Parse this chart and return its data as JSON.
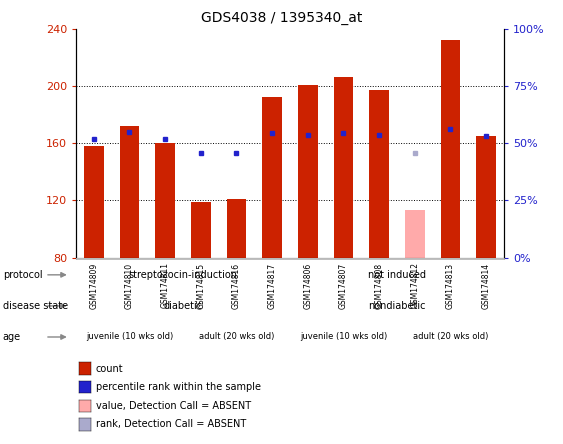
{
  "title": "GDS4038 / 1395340_at",
  "samples": [
    "GSM174809",
    "GSM174810",
    "GSM174811",
    "GSM174815",
    "GSM174816",
    "GSM174817",
    "GSM174806",
    "GSM174807",
    "GSM174808",
    "GSM174812",
    "GSM174813",
    "GSM174814"
  ],
  "bar_values": [
    158,
    172,
    160,
    119,
    121,
    192,
    201,
    206,
    197,
    null,
    232,
    165
  ],
  "bar_color": "#cc2200",
  "absent_bar_value": 113,
  "absent_bar_color": "#ffaaaa",
  "absent_bar_index": 9,
  "percentile_values": [
    163,
    168,
    163,
    153,
    153,
    167,
    166,
    167,
    166,
    null,
    170,
    165
  ],
  "absent_percentile_value": 153,
  "absent_percentile_index": 9,
  "percentile_color": "#2222cc",
  "absent_percentile_color": "#aaaacc",
  "ylim_left": [
    80,
    240
  ],
  "yticks_left": [
    80,
    120,
    160,
    200,
    240
  ],
  "ylim_right": [
    0,
    100
  ],
  "yticks_right": [
    0,
    25,
    50,
    75,
    100
  ],
  "ytick_labels_right": [
    "0%",
    "25%",
    "50%",
    "75%",
    "100%"
  ],
  "protocol_groups": [
    {
      "label": "streptozocin-induction",
      "start": 0,
      "end": 5,
      "color": "#aaddaa"
    },
    {
      "label": "not induced",
      "start": 6,
      "end": 11,
      "color": "#44cc44"
    }
  ],
  "disease_groups": [
    {
      "label": "diabetic",
      "start": 0,
      "end": 5,
      "color": "#bbaaee"
    },
    {
      "label": "nondiabetic",
      "start": 6,
      "end": 11,
      "color": "#6655cc"
    }
  ],
  "age_groups": [
    {
      "label": "juvenile (10 wks old)",
      "start": 0,
      "end": 2,
      "color": "#ffbbaa"
    },
    {
      "label": "adult (20 wks old)",
      "start": 3,
      "end": 5,
      "color": "#cc6655"
    },
    {
      "label": "juvenile (10 wks old)",
      "start": 6,
      "end": 8,
      "color": "#ffbbaa"
    },
    {
      "label": "adult (20 wks old)",
      "start": 9,
      "end": 11,
      "color": "#cc6655"
    }
  ],
  "legend_items": [
    {
      "label": "count",
      "color": "#cc2200"
    },
    {
      "label": "percentile rank within the sample",
      "color": "#2222cc"
    },
    {
      "label": "value, Detection Call = ABSENT",
      "color": "#ffaaaa"
    },
    {
      "label": "rank, Detection Call = ABSENT",
      "color": "#aaaacc"
    }
  ],
  "grid_lines": [
    120,
    160,
    200
  ],
  "label_arrow_color": "#888888"
}
